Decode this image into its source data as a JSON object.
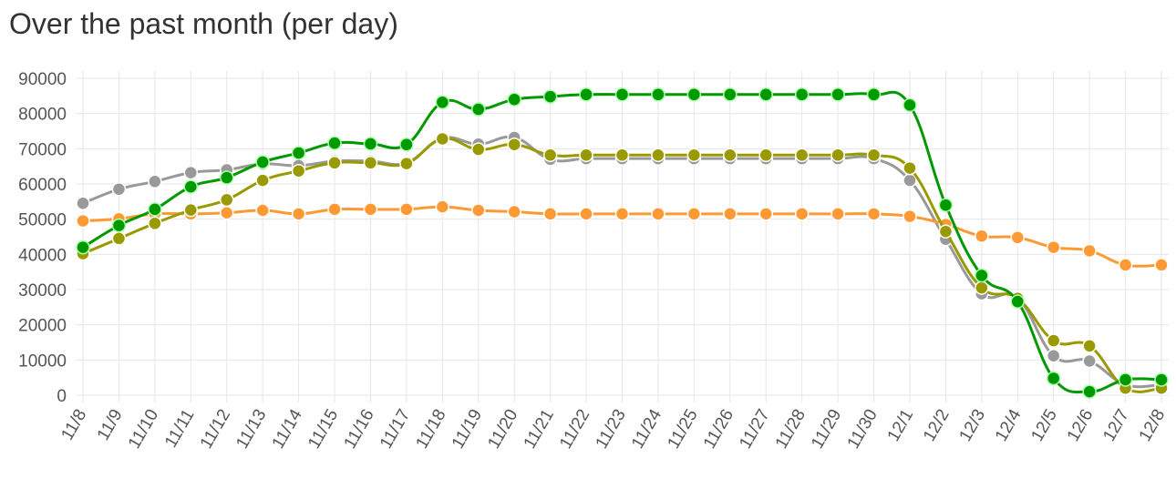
{
  "title": "Over the past month (per day)",
  "chart_data": {
    "type": "line",
    "categories": [
      "11/8",
      "11/9",
      "11/10",
      "11/11",
      "11/12",
      "11/13",
      "11/14",
      "11/15",
      "11/16",
      "11/17",
      "11/18",
      "11/19",
      "11/20",
      "11/21",
      "11/22",
      "11/23",
      "11/24",
      "11/25",
      "11/26",
      "11/27",
      "11/28",
      "11/29",
      "11/30",
      "12/1",
      "12/2",
      "12/3",
      "12/4",
      "12/5",
      "12/6",
      "12/7",
      "12/8"
    ],
    "yticks": [
      0,
      10000,
      20000,
      30000,
      40000,
      50000,
      60000,
      70000,
      80000,
      90000
    ],
    "ylim": [
      0,
      90000
    ],
    "grid": true,
    "series": [
      {
        "color": "#999999",
        "values": [
          54500,
          58500,
          60700,
          63200,
          64000,
          65700,
          65200,
          66500,
          66500,
          66000,
          73000,
          71300,
          73200,
          67000,
          67200,
          67200,
          67200,
          67200,
          67200,
          67200,
          67200,
          67200,
          67200,
          61000,
          44300,
          28800,
          27600,
          11200,
          9700,
          3000,
          3000
        ]
      },
      {
        "color": "#ff9933",
        "values": [
          49500,
          50100,
          51500,
          51500,
          51800,
          52500,
          51500,
          52800,
          52800,
          52800,
          53500,
          52500,
          52100,
          51500,
          51500,
          51500,
          51500,
          51500,
          51500,
          51500,
          51500,
          51500,
          51500,
          50800,
          48500,
          45200,
          44800,
          42000,
          41000,
          37000,
          37000
        ]
      },
      {
        "color": "#999900",
        "values": [
          40200,
          44500,
          48800,
          52600,
          55500,
          61000,
          63700,
          66000,
          66000,
          65800,
          72800,
          69800,
          71200,
          68200,
          68200,
          68200,
          68200,
          68200,
          68200,
          68200,
          68200,
          68200,
          68200,
          64500,
          46500,
          30500,
          27500,
          15500,
          14000,
          2000,
          2000
        ]
      },
      {
        "color": "#009900",
        "values": [
          42000,
          48200,
          52800,
          59200,
          61800,
          66200,
          68800,
          71600,
          71400,
          71200,
          83200,
          81200,
          84000,
          84800,
          85400,
          85400,
          85400,
          85400,
          85400,
          85400,
          85400,
          85400,
          85400,
          82400,
          54000,
          34000,
          26600,
          4800,
          1000,
          4400,
          4400
        ]
      }
    ]
  }
}
